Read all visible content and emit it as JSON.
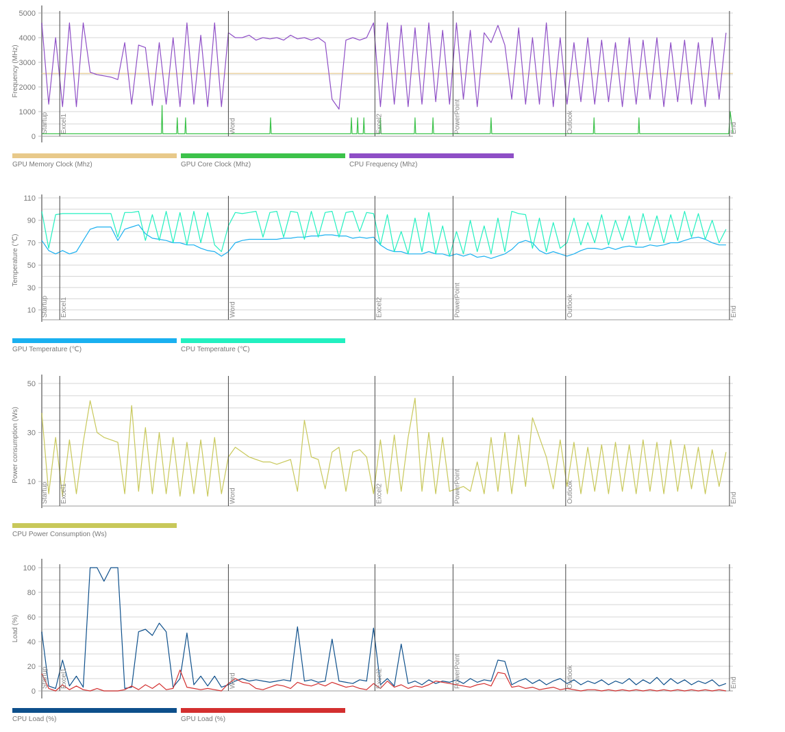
{
  "chart_data": [
    {
      "type": "line",
      "ylabel": "Frequency (MHz)",
      "ylim": [
        0,
        5000
      ],
      "yticks": [
        0,
        1000,
        2000,
        3000,
        4000,
        5000
      ],
      "xlim": [
        0,
        1000
      ],
      "markers": [
        {
          "label": "Startup",
          "x": 0
        },
        {
          "label": "Excel1",
          "x": 26
        },
        {
          "label": "Word",
          "x": 270
        },
        {
          "label": "Excel2",
          "x": 482
        },
        {
          "label": "PowerPoint",
          "x": 595
        },
        {
          "label": "Outlook",
          "x": 758
        },
        {
          "label": "End",
          "x": 995
        }
      ],
      "series": [
        {
          "name": "GPU Memory Clock (Mhz)",
          "color": "#e8c98a",
          "x": [
            0,
            1000
          ],
          "values": [
            2550,
            2550
          ]
        },
        {
          "name": "GPU Core Clock (Mhz)",
          "color": "#3cc24a",
          "x": [
            0,
            173,
            174,
            175,
            176,
            195,
            196,
            197,
            198,
            207,
            208,
            209,
            210,
            330,
            331,
            332,
            333,
            447,
            448,
            449,
            450,
            456,
            457,
            458,
            459,
            465,
            466,
            467,
            468,
            489,
            490,
            491,
            492,
            539,
            540,
            541,
            542,
            565,
            566,
            567,
            568,
            649,
            650,
            651,
            652,
            798,
            799,
            800,
            801,
            863,
            864,
            865,
            866,
            994,
            996,
            1000
          ],
          "values": [
            100,
            100,
            1250,
            100,
            100,
            100,
            750,
            100,
            100,
            100,
            750,
            100,
            100,
            100,
            750,
            100,
            100,
            100,
            750,
            100,
            100,
            100,
            750,
            100,
            100,
            100,
            750,
            100,
            100,
            100,
            750,
            100,
            100,
            100,
            750,
            100,
            100,
            100,
            750,
            100,
            100,
            100,
            750,
            100,
            100,
            100,
            750,
            100,
            100,
            100,
            750,
            100,
            100,
            100,
            1000,
            100
          ]
        },
        {
          "name": "CPU Frequency (Mhz)",
          "color": "#8e4ec6",
          "step": 10,
          "values": [
            4600,
            1300,
            4000,
            1200,
            4600,
            1200,
            4600,
            2600,
            2500,
            2450,
            2400,
            2300,
            3800,
            1300,
            3700,
            3600,
            1250,
            3800,
            1300,
            4000,
            1200,
            4600,
            1300,
            4100,
            1200,
            4600,
            1200,
            4200,
            4000,
            4000,
            4100,
            3900,
            4000,
            3950,
            4000,
            3900,
            4100,
            3950,
            4000,
            3900,
            4000,
            3800,
            1500,
            1100,
            3900,
            4000,
            3900,
            4000,
            4600,
            1200,
            4600,
            1300,
            4500,
            1200,
            4400,
            1300,
            4600,
            1400,
            4300,
            1300,
            4600,
            1500,
            4300,
            1200,
            4200,
            3800,
            4500,
            3700,
            1500,
            4400,
            1300,
            4000,
            1300,
            4600,
            1200,
            4000,
            1300,
            3800,
            1400,
            4000,
            1300,
            3900,
            1400,
            3800,
            1200,
            4000,
            1300,
            3900,
            1500,
            4000,
            1200,
            3800,
            1400,
            3900,
            1300,
            3800,
            1200,
            4000,
            1500,
            4200
          ]
        }
      ]
    },
    {
      "type": "line",
      "ylabel": "Temperature (℃)",
      "ylim": [
        0,
        110
      ],
      "yticks": [
        10,
        30,
        50,
        70,
        90,
        110
      ],
      "xlim": [
        0,
        1000
      ],
      "markers": [
        {
          "label": "Startup",
          "x": 0
        },
        {
          "label": "Excel1",
          "x": 26
        },
        {
          "label": "Word",
          "x": 270
        },
        {
          "label": "Excel2",
          "x": 482
        },
        {
          "label": "PowerPoint",
          "x": 595
        },
        {
          "label": "Outlook",
          "x": 758
        },
        {
          "label": "End",
          "x": 995
        }
      ],
      "series": [
        {
          "name": "GPU Temperature (℃)",
          "color": "#1ab0f0",
          "step": 10,
          "values": [
            72,
            63,
            60,
            63,
            60,
            62,
            72,
            82,
            84,
            84,
            84,
            72,
            82,
            84,
            86,
            78,
            74,
            73,
            72,
            70,
            70,
            68,
            68,
            65,
            63,
            62,
            58,
            62,
            70,
            72,
            73,
            73,
            73,
            73,
            73,
            74,
            74,
            75,
            75,
            76,
            76,
            77,
            77,
            76,
            76,
            74,
            75,
            74,
            75,
            68,
            64,
            62,
            62,
            60,
            60,
            60,
            62,
            60,
            60,
            58,
            60,
            58,
            60,
            57,
            58,
            56,
            58,
            60,
            64,
            70,
            72,
            70,
            63,
            60,
            62,
            60,
            58,
            60,
            63,
            65,
            65,
            64,
            66,
            64,
            66,
            67,
            66,
            66,
            68,
            67,
            68,
            70,
            70,
            72,
            74,
            75,
            73,
            70,
            68,
            68
          ]
        },
        {
          "name": "CPU Temperature (℃)",
          "color": "#22f0c0",
          "step": 10,
          "values": [
            98,
            65,
            95,
            96,
            96,
            96,
            96,
            96,
            96,
            96,
            96,
            75,
            97,
            97,
            98,
            72,
            95,
            72,
            98,
            70,
            97,
            68,
            98,
            70,
            97,
            68,
            62,
            85,
            97,
            96,
            97,
            98,
            75,
            97,
            98,
            75,
            98,
            97,
            73,
            98,
            75,
            97,
            98,
            75,
            97,
            98,
            80,
            97,
            96,
            68,
            95,
            62,
            80,
            60,
            92,
            62,
            97,
            60,
            85,
            58,
            80,
            60,
            90,
            62,
            85,
            60,
            92,
            62,
            98,
            96,
            95,
            65,
            92,
            62,
            88,
            65,
            70,
            92,
            68,
            88,
            70,
            95,
            68,
            90,
            72,
            94,
            68,
            96,
            72,
            94,
            70,
            95,
            72,
            98,
            75,
            96,
            73,
            90,
            70,
            82
          ]
        }
      ]
    },
    {
      "type": "line",
      "ylabel": "Power consumption (Ws)",
      "ylim": [
        0,
        50
      ],
      "yticks": [
        10,
        30,
        50
      ],
      "xlim": [
        0,
        1000
      ],
      "markers": [
        {
          "label": "Startup",
          "x": 0
        },
        {
          "label": "Excel1",
          "x": 26
        },
        {
          "label": "Word",
          "x": 270
        },
        {
          "label": "Excel2",
          "x": 482
        },
        {
          "label": "PowerPoint",
          "x": 595
        },
        {
          "label": "Outlook",
          "x": 758
        },
        {
          "label": "End",
          "x": 995
        }
      ],
      "series": [
        {
          "name": "CPU Power Consumption (Ws)",
          "color": "#c8c85a",
          "step": 10,
          "values": [
            38,
            5,
            28,
            4,
            27,
            5,
            26,
            43,
            30,
            28,
            27,
            26,
            5,
            41,
            6,
            32,
            5,
            30,
            5,
            28,
            4,
            26,
            5,
            27,
            4,
            28,
            5,
            20,
            24,
            22,
            20,
            19,
            18,
            18,
            17,
            18,
            19,
            6,
            35,
            20,
            19,
            7,
            22,
            24,
            6,
            22,
            23,
            20,
            5,
            27,
            5,
            29,
            6,
            28,
            44,
            6,
            30,
            5,
            28,
            6,
            7,
            8,
            6,
            18,
            5,
            28,
            6,
            30,
            5,
            29,
            8,
            36,
            28,
            20,
            7,
            27,
            8,
            26,
            5,
            24,
            6,
            25,
            5,
            26,
            6,
            25,
            5,
            27,
            6,
            26,
            5,
            27,
            6,
            25,
            7,
            24,
            5,
            23,
            8,
            22
          ]
        }
      ]
    },
    {
      "type": "line",
      "ylabel": "Load (%)",
      "ylim": [
        0,
        100
      ],
      "yticks": [
        0,
        20,
        40,
        60,
        80,
        100
      ],
      "xlim": [
        0,
        1000
      ],
      "markers": [
        {
          "label": "Startup",
          "x": 0
        },
        {
          "label": "Excel1",
          "x": 26
        },
        {
          "label": "Word",
          "x": 270
        },
        {
          "label": "Excel2",
          "x": 482
        },
        {
          "label": "PowerPoint",
          "x": 595
        },
        {
          "label": "Outlook",
          "x": 758
        },
        {
          "label": "End",
          "x": 995
        }
      ],
      "series": [
        {
          "name": "CPU Load (%)",
          "color": "#0d4f8b",
          "step": 10,
          "values": [
            48,
            4,
            2,
            25,
            4,
            12,
            3,
            100,
            100,
            89,
            100,
            100,
            2,
            3,
            48,
            50,
            45,
            55,
            48,
            3,
            10,
            47,
            5,
            12,
            4,
            12,
            3,
            5,
            8,
            10,
            8,
            9,
            8,
            7,
            8,
            9,
            8,
            52,
            8,
            9,
            7,
            8,
            42,
            8,
            7,
            6,
            9,
            8,
            51,
            5,
            10,
            4,
            38,
            6,
            8,
            5,
            9,
            6,
            8,
            7,
            9,
            6,
            10,
            7,
            9,
            8,
            25,
            24,
            5,
            8,
            10,
            6,
            9,
            5,
            8,
            10,
            6,
            9,
            5,
            8,
            6,
            9,
            5,
            8,
            6,
            10,
            5,
            9,
            6,
            11,
            5,
            10,
            6,
            9,
            5,
            8,
            6,
            9,
            4,
            6
          ]
        },
        {
          "name": "GPU Load (%)",
          "color": "#d32f2f",
          "step": 10,
          "values": [
            14,
            2,
            0,
            5,
            1,
            4,
            1,
            0,
            2,
            0,
            0,
            0,
            1,
            4,
            1,
            5,
            2,
            6,
            1,
            2,
            17,
            3,
            2,
            1,
            2,
            1,
            0,
            6,
            10,
            7,
            6,
            2,
            1,
            3,
            5,
            4,
            2,
            7,
            5,
            4,
            6,
            4,
            7,
            5,
            3,
            4,
            2,
            1,
            6,
            2,
            8,
            3,
            5,
            2,
            4,
            3,
            5,
            8,
            7,
            6,
            5,
            4,
            3,
            5,
            6,
            4,
            15,
            14,
            3,
            4,
            2,
            3,
            1,
            2,
            3,
            1,
            2,
            1,
            0,
            1,
            1,
            0,
            1,
            0,
            1,
            0,
            1,
            0,
            1,
            0,
            1,
            0,
            1,
            0,
            1,
            0,
            1,
            0,
            1,
            0
          ]
        }
      ]
    }
  ]
}
